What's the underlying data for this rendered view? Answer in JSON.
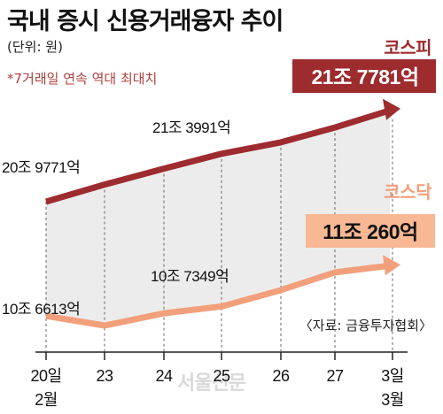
{
  "title": "국내 증시 신용거래융자 추이",
  "unit": "(단위: 원)",
  "note": "*7거래일 연속 역대 최대치",
  "source": "〈자료: 금융투자협회〉",
  "watermark": "서울신문",
  "colors": {
    "kospi": "#9e2b2e",
    "kosdaq": "#f2a07c",
    "kosdaq_box": "#f7b893",
    "fill": "#e6e6e6"
  },
  "chart_data": {
    "type": "line",
    "categories": [
      "20일|2월",
      "23",
      "24",
      "25",
      "26",
      "27",
      "3일|3월"
    ],
    "series": [
      {
        "name": "코스피",
        "values": [
          20.98,
          21.13,
          21.27,
          21.4,
          21.5,
          21.63,
          21.78
        ],
        "labels": {
          "first": "20조 9771억",
          "mid": "21조 3991억",
          "last": "21조 7781억"
        }
      },
      {
        "name": "코스닥",
        "values": [
          10.66,
          10.59,
          10.68,
          10.73,
          10.85,
          10.98,
          11.03
        ],
        "labels": {
          "first": "10조 6613억",
          "mid": "10조 7349억",
          "last": "11조 260억"
        }
      }
    ],
    "legend": "right"
  }
}
